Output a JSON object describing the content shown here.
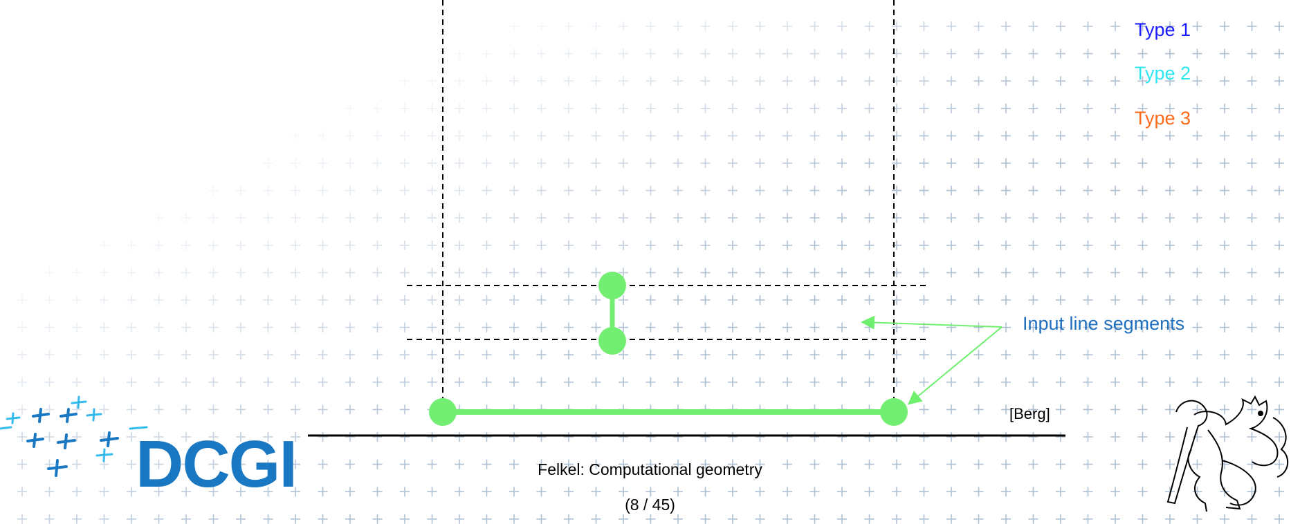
{
  "legend": {
    "type1": {
      "label": "Type 1",
      "color": "#1a1aff"
    },
    "type2": {
      "label": "Type 2",
      "color": "#2ee6f2"
    },
    "type3": {
      "label": "Type 3",
      "color": "#ff6a1a"
    }
  },
  "annotation": {
    "label": "Input line segments",
    "arrow_color": "#6ef06e"
  },
  "citation": "[Berg]",
  "footer": {
    "title": "Felkel: Computational geometry",
    "page": "(8 / 45)"
  },
  "logo": {
    "text": "DCGI",
    "color": "#1a78c2"
  },
  "colors": {
    "segment": "#72ee72",
    "crosses": "#c9d7e6",
    "rule": "#000000",
    "dashes": "#000000"
  },
  "icons": [
    "cross-grid-decoration",
    "dcgi-cross-mark",
    "lion-emblem-icon"
  ]
}
